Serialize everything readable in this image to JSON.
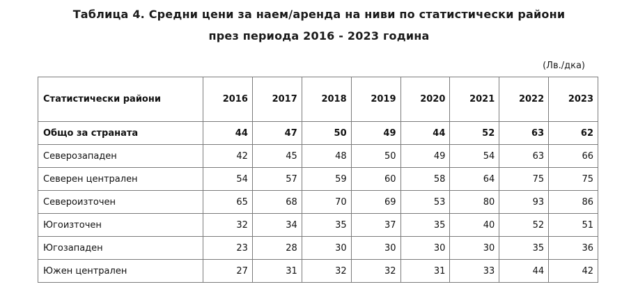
{
  "title": {
    "line1": "Таблица 4. Средни цени за наем/аренда на ниви по статистически райони",
    "line2": "през периода 2016 - 2023 година"
  },
  "unit": "(Лв./дка)",
  "table": {
    "header": {
      "region": "Статистически райони",
      "years": [
        "2016",
        "2017",
        "2018",
        "2019",
        "2020",
        "2021",
        "2022",
        "2023"
      ]
    },
    "rows": [
      {
        "name": "Общо за страната",
        "values": [
          "44",
          "47",
          "50",
          "49",
          "44",
          "52",
          "63",
          "62"
        ]
      },
      {
        "name": "Северозападен",
        "values": [
          "42",
          "45",
          "48",
          "50",
          "49",
          "54",
          "63",
          "66"
        ]
      },
      {
        "name": "Северен централен",
        "values": [
          "54",
          "57",
          "59",
          "60",
          "58",
          "64",
          "75",
          "75"
        ]
      },
      {
        "name": "Североизточен",
        "values": [
          "65",
          "68",
          "70",
          "69",
          "53",
          "80",
          "93",
          "86"
        ]
      },
      {
        "name": "Югоизточен",
        "values": [
          "32",
          "34",
          "35",
          "37",
          "35",
          "40",
          "52",
          "51"
        ]
      },
      {
        "name": "Югозападен",
        "values": [
          "23",
          "28",
          "30",
          "30",
          "30",
          "30",
          "35",
          "36"
        ]
      },
      {
        "name": "Южен централен",
        "values": [
          "27",
          "31",
          "32",
          "32",
          "31",
          "33",
          "44",
          "42"
        ]
      }
    ]
  }
}
